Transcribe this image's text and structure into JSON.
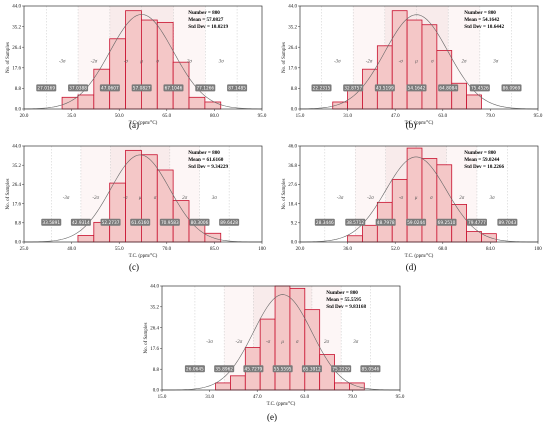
{
  "colors": {
    "bar_fill": "#f4c7c7",
    "bar_stroke": "#c8102e",
    "curve": "#666666",
    "badge": "#7a7a7a",
    "band_dark": "#f3dada",
    "band_light": "#fbeeee"
  },
  "chart_data": [
    {
      "panel": "(a)",
      "type": "bar",
      "xlabel": "T.C. (ppm/°C)",
      "ylabel": "No. of Samples",
      "xlim": [
        20.0,
        95.0
      ],
      "ylim": [
        0.0,
        44.0
      ],
      "xticks": [
        "20.0",
        "35.0",
        "50.0",
        "65.0",
        "80.0",
        "95.0"
      ],
      "yticks": [
        "0.0",
        "8.8",
        "17.6",
        "26.4",
        "35.2",
        "44.0"
      ],
      "stats": {
        "number": "Number = 800",
        "mean": "Mean = 57.0827",
        "std": "Std Dev = 10.0219"
      },
      "sigma_labels": [
        "-3σ",
        "-2σ",
        "-σ",
        "μ",
        "σ",
        "2σ",
        "3σ"
      ],
      "bin_edges": [
        32.0,
        37.0,
        42.0,
        47.0,
        52.0,
        57.0,
        62.0,
        67.0,
        72.0,
        77.0,
        82.0
      ],
      "values": [
        5,
        6,
        17,
        30,
        42,
        38,
        37,
        20,
        5,
        3
      ],
      "badges": [
        "27.0169",
        "37.0388",
        "47.0607",
        "57.0827",
        "67.1046",
        "77.1266",
        "87.1485"
      ]
    },
    {
      "panel": "(b)",
      "type": "bar",
      "xlabel": "T.C. (ppm/°C)",
      "ylabel": "No. of Samples",
      "xlim": [
        15.0,
        95.0
      ],
      "ylim": [
        0.0,
        44.0
      ],
      "xticks": [
        "15.0",
        "31.0",
        "47.0",
        "63.0",
        "79.0",
        "95.0"
      ],
      "yticks": [
        "0.0",
        "8.8",
        "17.6",
        "26.4",
        "35.2",
        "44.0"
      ],
      "stats": {
        "number": "Number = 800",
        "mean": "Mean = 54.1642",
        "std": "Std Dev = 10.6442"
      },
      "sigma_labels": [
        "-3σ",
        "-2σ",
        "-σ",
        "μ",
        "σ",
        "2σ",
        "3σ"
      ],
      "bin_edges": [
        26.0,
        31.0,
        36.0,
        41.0,
        46.0,
        51.0,
        56.0,
        61.0,
        66.0,
        71.0,
        76.0
      ],
      "values": [
        3,
        10,
        17,
        27,
        42,
        38,
        36,
        25,
        11,
        6
      ],
      "badges": [
        "22.2315",
        "32.8757",
        "43.5199",
        "54.1642",
        "64.8084",
        "75.4526",
        "86.0969"
      ]
    },
    {
      "panel": "(c)",
      "type": "bar",
      "xlabel": "T.C. (ppm/°C)",
      "ylabel": "No. of Samples",
      "xlim": [
        25.0,
        100.0
      ],
      "ylim": [
        0.0,
        44.0
      ],
      "xticks": [
        "25.0",
        "40.0",
        "55.0",
        "70.0",
        "85.0",
        "100"
      ],
      "yticks": [
        "0.0",
        "8.8",
        "17.6",
        "26.4",
        "35.2",
        "44.0"
      ],
      "stats": {
        "number": "Number = 800",
        "mean": "Mean = 61.6160",
        "std": "Std Dev = 9.34229"
      },
      "sigma_labels": [
        "-3σ",
        "-2σ",
        "-σ",
        "μ",
        "σ",
        "2σ",
        "3σ"
      ],
      "bin_edges": [
        42.0,
        47.0,
        52.0,
        57.0,
        62.0,
        67.0,
        72.0,
        77.0,
        82.0,
        87.0
      ],
      "values": [
        3,
        9,
        27,
        42,
        40,
        33,
        19,
        10,
        4
      ],
      "badges": [
        "33.5891",
        "42.9314",
        "52.2737",
        "61.6160",
        "70.9583",
        "80.3006",
        "89.6428"
      ]
    },
    {
      "panel": "(d)",
      "type": "bar",
      "xlabel": "T.C. (ppm/°C)",
      "ylabel": "No. of Samples",
      "xlim": [
        20.0,
        100.0
      ],
      "ylim": [
        0.0,
        46.0
      ],
      "xticks": [
        "20.0",
        "36.0",
        "52.0",
        "68.0",
        "84.0",
        "100"
      ],
      "yticks": [
        "0.0",
        "9.2",
        "18.4",
        "27.6",
        "36.8",
        "46.0"
      ],
      "stats": {
        "number": "Number = 800",
        "mean": "Mean = 59.0244",
        "std": "Std Dev = 10.2266"
      },
      "sigma_labels": [
        "-3σ",
        "-2σ",
        "-σ",
        "μ",
        "σ",
        "2σ",
        "3σ"
      ],
      "bin_edges": [
        36.0,
        41.0,
        46.0,
        51.0,
        56.0,
        61.0,
        66.0,
        71.0,
        76.0,
        81.0,
        86.0
      ],
      "values": [
        3,
        8,
        19,
        30,
        45,
        40,
        37,
        18,
        5,
        4
      ],
      "badges": [
        "28.3446",
        "38.5712",
        "48.7978",
        "59.0244",
        "69.2510",
        "79.4777",
        "89.7043"
      ]
    },
    {
      "panel": "(e)",
      "type": "bar",
      "xlabel": "T.C. (ppm/°C)",
      "ylabel": "No. of Samples",
      "xlim": [
        15.0,
        95.0
      ],
      "ylim": [
        0.0,
        44.0
      ],
      "xticks": [
        "15.0",
        "31.0",
        "47.0",
        "63.0",
        "79.0",
        "95.0"
      ],
      "yticks": [
        "0.0",
        "8.8",
        "17.6",
        "26.4",
        "35.2",
        "44.0"
      ],
      "stats": {
        "number": "Number = 800",
        "mean": "Mean = 55.5595",
        "std": "Std Dev = 9.83168"
      },
      "sigma_labels": [
        "-3σ",
        "-2σ",
        "-σ",
        "μ",
        "σ",
        "2σ",
        "3σ"
      ],
      "bin_edges": [
        33.0,
        38.0,
        43.0,
        48.0,
        53.0,
        58.0,
        63.0,
        68.0,
        73.0,
        78.0,
        83.0
      ],
      "values": [
        3,
        6,
        18,
        30,
        44,
        43,
        34,
        15,
        3,
        3
      ],
      "badges": [
        "26.0645",
        "35.8962",
        "45.7279",
        "55.5595",
        "65.3912",
        "75.2229",
        "85.0546"
      ]
    }
  ]
}
